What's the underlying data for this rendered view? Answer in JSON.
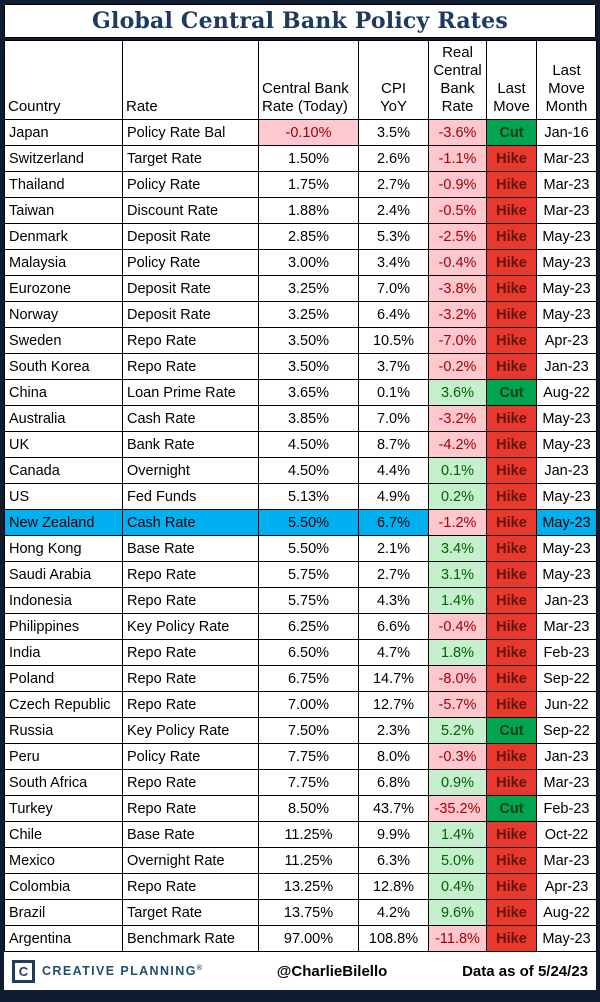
{
  "title": "Global Central Bank Policy Rates",
  "chart_data": {
    "type": "table",
    "columns": [
      "Country",
      "Rate",
      "Central Bank\nRate (Today)",
      "CPI\nYoY",
      "Real\nCentral\nBank\nRate",
      "Last\nMove",
      "Last\nMove\nMonth"
    ],
    "rows": [
      [
        "Japan",
        "Policy Rate Bal",
        "-0.10%",
        "3.5%",
        "-3.6%",
        "Cut",
        "Jan-16"
      ],
      [
        "Switzerland",
        "Target Rate",
        "1.50%",
        "2.6%",
        "-1.1%",
        "Hike",
        "Mar-23"
      ],
      [
        "Thailand",
        "Policy Rate",
        "1.75%",
        "2.7%",
        "-0.9%",
        "Hike",
        "Mar-23"
      ],
      [
        "Taiwan",
        "Discount Rate",
        "1.88%",
        "2.4%",
        "-0.5%",
        "Hike",
        "Mar-23"
      ],
      [
        "Denmark",
        "Deposit Rate",
        "2.85%",
        "5.3%",
        "-2.5%",
        "Hike",
        "May-23"
      ],
      [
        "Malaysia",
        "Policy Rate",
        "3.00%",
        "3.4%",
        "-0.4%",
        "Hike",
        "May-23"
      ],
      [
        "Eurozone",
        "Deposit Rate",
        "3.25%",
        "7.0%",
        "-3.8%",
        "Hike",
        "May-23"
      ],
      [
        "Norway",
        "Deposit Rate",
        "3.25%",
        "6.4%",
        "-3.2%",
        "Hike",
        "May-23"
      ],
      [
        "Sweden",
        "Repo Rate",
        "3.50%",
        "10.5%",
        "-7.0%",
        "Hike",
        "Apr-23"
      ],
      [
        "South Korea",
        "Repo Rate",
        "3.50%",
        "3.7%",
        "-0.2%",
        "Hike",
        "Jan-23"
      ],
      [
        "China",
        "Loan Prime Rate",
        "3.65%",
        "0.1%",
        "3.6%",
        "Cut",
        "Aug-22"
      ],
      [
        "Australia",
        "Cash Rate",
        "3.85%",
        "7.0%",
        "-3.2%",
        "Hike",
        "May-23"
      ],
      [
        "UK",
        "Bank Rate",
        "4.50%",
        "8.7%",
        "-4.2%",
        "Hike",
        "May-23"
      ],
      [
        "Canada",
        "Overnight",
        "4.50%",
        "4.4%",
        "0.1%",
        "Hike",
        "Jan-23"
      ],
      [
        "US",
        "Fed Funds",
        "5.13%",
        "4.9%",
        "0.2%",
        "Hike",
        "May-23"
      ],
      [
        "New Zealand",
        "Cash Rate",
        "5.50%",
        "6.7%",
        "-1.2%",
        "Hike",
        "May-23"
      ],
      [
        "Hong Kong",
        "Base Rate",
        "5.50%",
        "2.1%",
        "3.4%",
        "Hike",
        "May-23"
      ],
      [
        "Saudi Arabia",
        "Repo Rate",
        "5.75%",
        "2.7%",
        "3.1%",
        "Hike",
        "May-23"
      ],
      [
        "Indonesia",
        "Repo Rate",
        "5.75%",
        "4.3%",
        "1.4%",
        "Hike",
        "Jan-23"
      ],
      [
        "Philippines",
        "Key Policy Rate",
        "6.25%",
        "6.6%",
        "-0.4%",
        "Hike",
        "Mar-23"
      ],
      [
        "India",
        "Repo Rate",
        "6.50%",
        "4.7%",
        "1.8%",
        "Hike",
        "Feb-23"
      ],
      [
        "Poland",
        "Repo Rate",
        "6.75%",
        "14.7%",
        "-8.0%",
        "Hike",
        "Sep-22"
      ],
      [
        "Czech Republic",
        "Repo Rate",
        "7.00%",
        "12.7%",
        "-5.7%",
        "Hike",
        "Jun-22"
      ],
      [
        "Russia",
        "Key Policy Rate",
        "7.50%",
        "2.3%",
        "5.2%",
        "Cut",
        "Sep-22"
      ],
      [
        "Peru",
        "Policy Rate",
        "7.75%",
        "8.0%",
        "-0.3%",
        "Hike",
        "Jan-23"
      ],
      [
        "South Africa",
        "Repo Rate",
        "7.75%",
        "6.8%",
        "0.9%",
        "Hike",
        "Mar-23"
      ],
      [
        "Turkey",
        "Repo Rate",
        "8.50%",
        "43.7%",
        "-35.2%",
        "Cut",
        "Feb-23"
      ],
      [
        "Chile",
        "Base Rate",
        "11.25%",
        "9.9%",
        "1.4%",
        "Hike",
        "Oct-22"
      ],
      [
        "Mexico",
        "Overnight Rate",
        "11.25%",
        "6.3%",
        "5.0%",
        "Hike",
        "Mar-23"
      ],
      [
        "Colombia",
        "Repo Rate",
        "13.25%",
        "12.8%",
        "0.4%",
        "Hike",
        "Apr-23"
      ],
      [
        "Brazil",
        "Target Rate",
        "13.75%",
        "4.2%",
        "9.6%",
        "Hike",
        "Aug-22"
      ],
      [
        "Argentina",
        "Benchmark Rate",
        "97.00%",
        "108.8%",
        "-11.8%",
        "Hike",
        "May-23"
      ]
    ],
    "highlighted_row": "New Zealand"
  },
  "footer": {
    "logo_c": "C",
    "logo_text": "CREATIVE PLANNING",
    "registered_mark": "®",
    "handle": "@CharlieBilello",
    "data_as_of": "Data as of 5/24/23"
  },
  "colors": {
    "frame": "#0f1c31",
    "title_text": "#1f3a60",
    "highlight": "#00b0f0",
    "neg_bg": "#ffc7ce",
    "neg_text": "#9c0006",
    "pos_bg": "#c6efce",
    "pos_text": "#006100",
    "hike_bg": "#e8392f",
    "hike_text": "#641207",
    "cut_bg": "#00a550",
    "cut_text": "#0a3a1d"
  }
}
